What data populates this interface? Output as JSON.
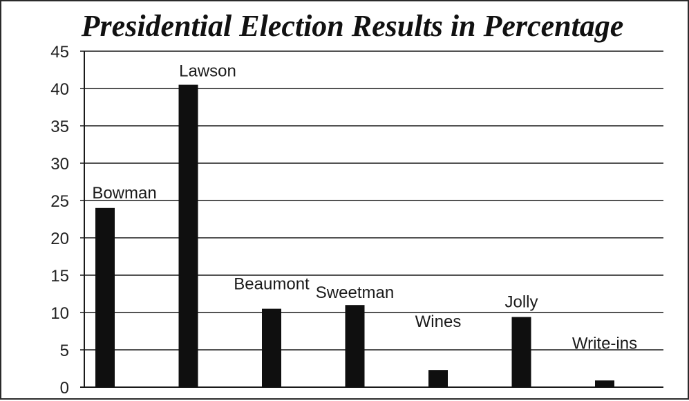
{
  "chart_data": {
    "type": "bar",
    "title": "Presidential Election Results in Percentage",
    "xlabel": "",
    "ylabel": "",
    "categories": [
      "Bowman",
      "Lawson",
      "Beaumont",
      "Sweetman",
      "Wines",
      "Jolly",
      "Write-ins"
    ],
    "values": [
      24,
      40.5,
      10.5,
      11,
      2.3,
      9.4,
      0.9
    ],
    "ylim": [
      0,
      45
    ],
    "yticks": [
      "0",
      "5",
      "10",
      "15",
      "20",
      "25",
      "30",
      "35",
      "40",
      "45"
    ],
    "grid": true,
    "legend": "none",
    "bar_color": "#0f0f0f"
  }
}
